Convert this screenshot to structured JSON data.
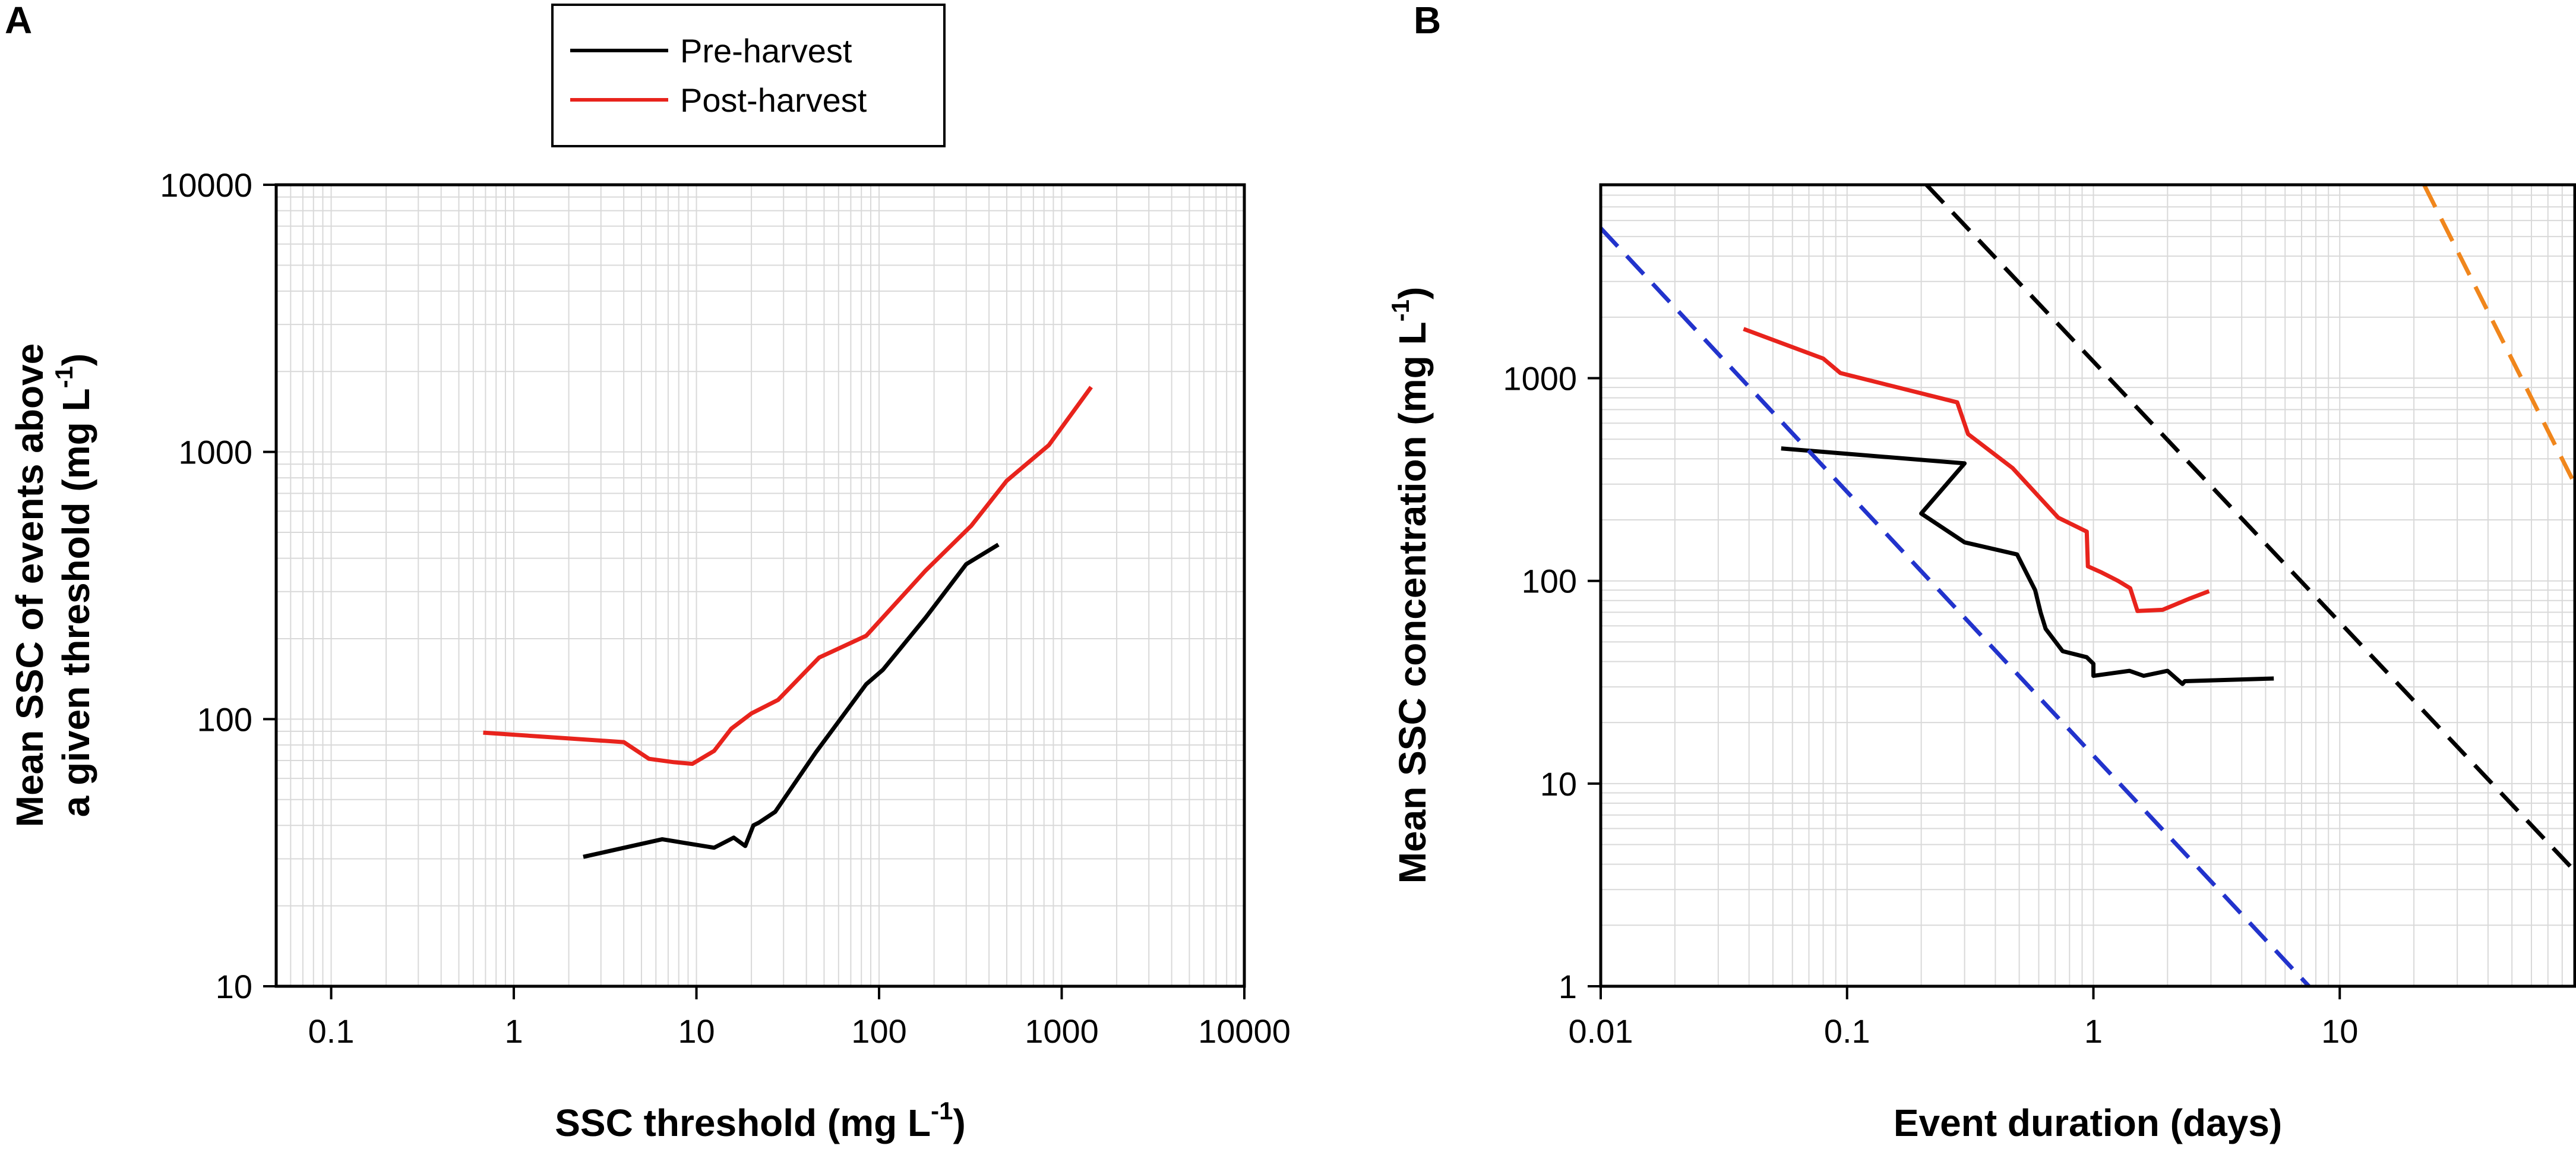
{
  "chart_data": [
    {
      "panel": "A",
      "type": "line",
      "xscale": "log",
      "yscale": "log",
      "xlabel": "SSC threshold (mg L",
      "xlabel_sup": "-1",
      "xlabel_end": ")",
      "ylabel_line1": "Mean SSC of events above",
      "ylabel_line2": "a given threshold (mg L",
      "ylabel_sup": "-1",
      "ylabel_end": ")",
      "xlim": [
        0.05,
        10000
      ],
      "ylim": [
        10,
        10000
      ],
      "xticks": [
        0.1,
        1,
        10,
        100,
        1000,
        10000
      ],
      "xtick_labels": [
        "0.1",
        "1",
        "10",
        "100",
        "1000",
        "10000"
      ],
      "yticks": [
        10,
        100,
        1000,
        10000
      ],
      "ytick_labels": [
        "10",
        "100",
        "1000",
        "10000"
      ],
      "grid": true,
      "legend": [
        {
          "label": "Pre-harvest",
          "color": "#000000"
        },
        {
          "label": "Post-harvest",
          "color": "#e8231c"
        }
      ],
      "series": [
        {
          "name": "Pre-harvest",
          "color": "#000000",
          "x": [
            2.4,
            6.5,
            12.5,
            16,
            18.5,
            20.5,
            22,
            27,
            45,
            85,
            105,
            180,
            300,
            450
          ],
          "y": [
            30.5,
            35.5,
            33,
            36,
            33.5,
            40,
            41,
            45,
            75,
            135,
            153,
            240,
            380,
            450
          ]
        },
        {
          "name": "Post-harvest",
          "color": "#e8231c",
          "x": [
            0.68,
            4,
            5.5,
            7.5,
            9.5,
            12.5,
            15.5,
            20,
            28,
            47,
            85,
            180,
            320,
            500,
            850,
            1450
          ],
          "y": [
            89,
            82,
            71,
            69,
            68,
            76,
            92,
            105,
            118,
            170,
            205,
            360,
            530,
            780,
            1060,
            1750
          ]
        }
      ]
    },
    {
      "panel": "B",
      "type": "line",
      "xscale": "log",
      "yscale": "log",
      "xlabel": "Event duration (days)",
      "ylabel": "Mean SSC concentration (mg L",
      "ylabel_sup": "-1",
      "ylabel_end": ")",
      "xlim": [
        0.01,
        90
      ],
      "ylim": [
        1,
        9000
      ],
      "xticks": [
        0.01,
        0.1,
        1,
        10
      ],
      "xtick_labels": [
        "0.01",
        "0.1",
        "1",
        "10"
      ],
      "yticks": [
        1,
        10,
        100,
        1000
      ],
      "ytick_labels": [
        "1",
        "10",
        "100",
        "1000"
      ],
      "grid": true,
      "series": [
        {
          "name": "Pre-harvest",
          "color": "#000000",
          "x": [
            0.054,
            0.3,
            0.2,
            0.3,
            0.49,
            0.58,
            0.61,
            0.64,
            0.75,
            0.94,
            1.0,
            1.0,
            1.4,
            1.6,
            2.0,
            2.3,
            2.35,
            5.4
          ],
          "y": [
            450,
            380,
            215,
            155,
            135,
            90,
            70,
            58,
            45,
            42,
            39,
            34,
            36,
            34,
            36,
            31,
            32,
            33
          ]
        },
        {
          "name": "Post-harvest",
          "color": "#e8231c",
          "x": [
            0.038,
            0.08,
            0.094,
            0.28,
            0.31,
            0.47,
            0.72,
            0.94,
            0.95,
            1.08,
            1.26,
            1.41,
            1.51,
            1.91,
            2.47,
            2.95
          ],
          "y": [
            1750,
            1250,
            1060,
            760,
            530,
            360,
            205,
            175,
            118,
            110,
            100,
            92,
            71,
            72,
            82,
            89
          ]
        },
        {
          "name": "reference line (blue)",
          "color": "#2233cc",
          "dashed": true,
          "x": [
            0.01,
            7.5
          ],
          "y": [
            5500,
            1
          ]
        },
        {
          "name": "reference line (black)",
          "color": "#000000",
          "dashed": true,
          "x": [
            0.21,
            90
          ],
          "y": [
            9000,
            3.7
          ]
        },
        {
          "name": "reference line (orange)",
          "color": "#f0861c",
          "dashed": true,
          "x": [
            22,
            90
          ],
          "y": [
            9000,
            300
          ]
        }
      ]
    }
  ]
}
